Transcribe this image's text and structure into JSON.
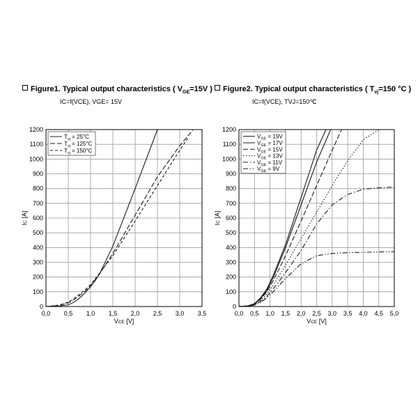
{
  "figure1": {
    "bullet_title": "Figure1. Typical output characteristics ( V",
    "title_sub": "GE",
    "title_end": "=15V )",
    "subtitle": "IC=f(VCE), VGE= 15V"
  },
  "figure2": {
    "bullet_title": "Figure2. Typical output characteristics ( T",
    "title_sub": "vj",
    "title_end": "=150 °C )",
    "subtitle": "IC=f(VCE), TVJ=150℃"
  },
  "chart_data": [
    {
      "type": "line",
      "title": "Figure1. Typical output characteristics ( VGE=15V )",
      "xlabel": "VCE [V]",
      "ylabel": "IC [A]",
      "xlim": [
        0,
        3.5
      ],
      "ylim": [
        0,
        1200
      ],
      "x_ticks": [
        "0,0",
        "0,5",
        "1,0",
        "1,5",
        "2,0",
        "2,5",
        "3,0",
        "3,5"
      ],
      "y_ticks": [
        "0",
        "100",
        "200",
        "300",
        "400",
        "500",
        "600",
        "700",
        "800",
        "900",
        "1000",
        "1100",
        "1200"
      ],
      "grid": true,
      "legend_position": "top-left",
      "series": [
        {
          "name": "Tvj = 25°C",
          "dash": "solid",
          "x": [
            0,
            0.3,
            0.5,
            0.6,
            0.7,
            0.8,
            0.9,
            1.0,
            1.1,
            1.2,
            1.5,
            2.0,
            2.5
          ],
          "y": [
            0,
            3,
            12,
            25,
            45,
            70,
            100,
            135,
            175,
            220,
            410,
            800,
            1200
          ]
        },
        {
          "name": "Tvj = 125°C",
          "dash": "long",
          "x": [
            0,
            0.3,
            0.5,
            0.6,
            0.7,
            0.8,
            0.9,
            1.0,
            1.2,
            1.5,
            2.0,
            2.5,
            3.0,
            3.3
          ],
          "y": [
            0,
            8,
            25,
            42,
            62,
            85,
            110,
            140,
            220,
            360,
            620,
            880,
            1090,
            1200
          ]
        },
        {
          "name": "Tvj = 150°C",
          "dash": "short",
          "x": [
            0,
            0.3,
            0.5,
            0.6,
            0.7,
            0.8,
            0.9,
            1.0,
            1.2,
            1.5,
            2.0,
            2.5,
            3.0,
            3.2
          ],
          "y": [
            0,
            10,
            30,
            48,
            70,
            95,
            120,
            150,
            225,
            345,
            580,
            820,
            1060,
            1150
          ]
        }
      ],
      "legend_labels": [
        {
          "main": "T",
          "sub": "vj",
          "rest": " = 25°C"
        },
        {
          "main": "T",
          "sub": "vj",
          "rest": " = 125°C"
        },
        {
          "main": "T",
          "sub": "vj",
          "rest": " = 150°C"
        }
      ],
      "axis_texts": {
        "x_main": "V",
        "x_sub": "CE",
        "x_unit": " [V]",
        "y_main": "I",
        "y_sub": "C",
        "y_unit": " [A]"
      }
    },
    {
      "type": "line",
      "title": "Figure2. Typical output characteristics ( Tvj=150 °C )",
      "xlabel": "VCE [V]",
      "ylabel": "IC [A]",
      "xlim": [
        0,
        5.0
      ],
      "ylim": [
        0,
        1200
      ],
      "x_ticks": [
        "0,0",
        "0,5",
        "1,0",
        "1,5",
        "2,0",
        "2,5",
        "3,0",
        "3,5",
        "4,0",
        "4,5",
        "5,0"
      ],
      "y_ticks": [
        "0",
        "100",
        "200",
        "300",
        "400",
        "500",
        "600",
        "700",
        "800",
        "900",
        "1000",
        "1100",
        "1200"
      ],
      "grid": true,
      "legend_position": "top-left",
      "series": [
        {
          "name": "VGE = 19V",
          "dash": "solid",
          "x": [
            0,
            0.3,
            0.5,
            0.7,
            0.9,
            1.1,
            1.5,
            2.0,
            2.5,
            2.8
          ],
          "y": [
            0,
            5,
            20,
            60,
            120,
            210,
            420,
            740,
            1060,
            1200
          ]
        },
        {
          "name": "VGE = 17V",
          "dash": "solid",
          "x": [
            0,
            0.3,
            0.5,
            0.7,
            0.9,
            1.1,
            1.5,
            2.0,
            2.5,
            2.95
          ],
          "y": [
            0,
            5,
            18,
            55,
            110,
            195,
            400,
            690,
            980,
            1200
          ]
        },
        {
          "name": "VGE = 15V",
          "dash": "long",
          "x": [
            0,
            0.3,
            0.5,
            0.7,
            0.9,
            1.1,
            1.5,
            2.0,
            2.5,
            3.0,
            3.3
          ],
          "y": [
            0,
            4,
            16,
            50,
            100,
            175,
            345,
            580,
            820,
            1060,
            1200
          ]
        },
        {
          "name": "VGE = 13V",
          "dash": "dot",
          "x": [
            0,
            0.3,
            0.5,
            0.7,
            0.9,
            1.1,
            1.5,
            2.0,
            2.5,
            3.0,
            3.5,
            4.0,
            4.5
          ],
          "y": [
            0,
            4,
            14,
            42,
            85,
            145,
            280,
            460,
            640,
            820,
            990,
            1130,
            1200
          ]
        },
        {
          "name": "VGE = 11V",
          "dash": "dashdot",
          "x": [
            0,
            0.3,
            0.5,
            0.7,
            0.9,
            1.1,
            1.5,
            2.0,
            2.5,
            3.0,
            3.5,
            4.0,
            4.5,
            5.0
          ],
          "y": [
            0,
            3,
            12,
            35,
            70,
            120,
            230,
            380,
            560,
            690,
            760,
            795,
            805,
            810
          ]
        },
        {
          "name": "VGE = 9V",
          "dash": "dashdotdot",
          "x": [
            0,
            0.3,
            0.5,
            0.7,
            0.9,
            1.1,
            1.5,
            2.0,
            2.5,
            3.0,
            3.5,
            4.0,
            4.5,
            5.0
          ],
          "y": [
            0,
            3,
            10,
            28,
            60,
            100,
            190,
            290,
            345,
            360,
            365,
            368,
            370,
            372
          ]
        }
      ],
      "legend_labels": [
        {
          "main": "V",
          "sub": "GE",
          "rest": " = 19V"
        },
        {
          "main": "V",
          "sub": "GE",
          "rest": " = 17V"
        },
        {
          "main": "V",
          "sub": "GE",
          "rest": " = 15V"
        },
        {
          "main": "V",
          "sub": "GE",
          "rest": " = 13V"
        },
        {
          "main": "V",
          "sub": "GE",
          "rest": " = 11V"
        },
        {
          "main": "V",
          "sub": "GE",
          "rest": " = 9V"
        }
      ],
      "axis_texts": {
        "x_main": "V",
        "x_sub": "CE",
        "x_unit": " [V]",
        "y_main": "I",
        "y_sub": "C",
        "y_unit": " [A]"
      }
    }
  ]
}
